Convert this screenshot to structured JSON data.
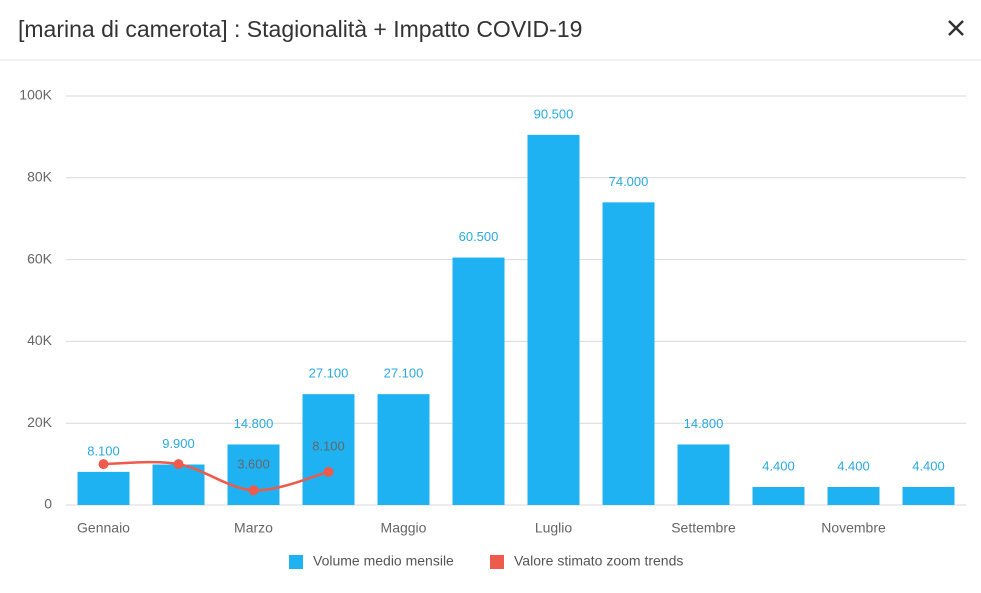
{
  "chart_data": {
    "type": "bar",
    "title": "[marina di camerota] : Stagionalità + Impatto COVID-19",
    "categories": [
      "Gennaio",
      null,
      "Marzo",
      null,
      "Maggio",
      null,
      "Luglio",
      null,
      "Settembre",
      null,
      "Novembre",
      null
    ],
    "series": [
      {
        "name": "Volume medio mensile",
        "type": "bar",
        "color": "#1fb2f2",
        "values": [
          8100,
          9900,
          14800,
          27100,
          27100,
          60500,
          90500,
          74000,
          14800,
          4400,
          4400,
          4400
        ],
        "value_labels": [
          "8.100",
          "9.900",
          "14.800",
          "27.100",
          "27.100",
          "60.500",
          "90.500",
          "74.000",
          "14.800",
          "4.400",
          "4.400",
          "4.400"
        ]
      },
      {
        "name": "Valore stimato zoom trends",
        "type": "line",
        "color": "#ee5a4b",
        "values": [
          10000,
          10000,
          3600,
          8100,
          null,
          null,
          null,
          null,
          null,
          null,
          null,
          null
        ],
        "value_labels": [
          null,
          null,
          "3.600",
          "8.100",
          null,
          null,
          null,
          null,
          null,
          null,
          null,
          null
        ]
      }
    ],
    "ylim": [
      0,
      100000
    ],
    "yticks": [
      0,
      {
        "value": 20000,
        "label": "20K"
      },
      {
        "value": 40000,
        "label": "40K"
      },
      {
        "value": 60000,
        "label": "60K"
      },
      {
        "value": 80000,
        "label": "80K"
      },
      {
        "value": 100000,
        "label": "100K"
      }
    ],
    "grid": true
  }
}
